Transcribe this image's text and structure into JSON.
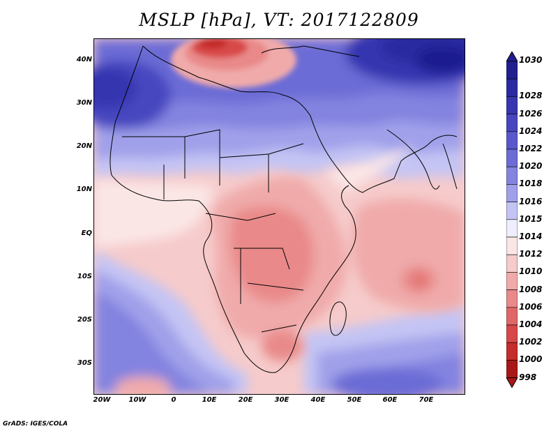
{
  "title": "MSLP [hPa], VT: 2017122809",
  "credit": "GrADS: IGES/COLA",
  "lat_labels": [
    "40N",
    "30N",
    "20N",
    "10N",
    "EQ",
    "10S",
    "20S",
    "30S"
  ],
  "lon_labels": [
    "20W",
    "10W",
    "0",
    "10E",
    "20E",
    "30E",
    "40E",
    "50E",
    "60E",
    "70E"
  ],
  "colorbar": {
    "levels": [
      "1030",
      "1028",
      "1026",
      "1024",
      "1022",
      "1020",
      "1018",
      "1016",
      "1015",
      "1014",
      "1012",
      "1010",
      "1008",
      "1006",
      "1004",
      "1002",
      "1000",
      "998"
    ],
    "colors": [
      "#1f1f90",
      "#2a2aa0",
      "#3636b0",
      "#4646c0",
      "#5858cc",
      "#6c6cd6",
      "#8383e0",
      "#a0a0ea",
      "#c4c4f4",
      "#eeeeff",
      "#fbe6e6",
      "#f6cbcb",
      "#f0aaaa",
      "#e98989",
      "#e06767",
      "#d84848",
      "#c52c2c",
      "#a81818"
    ]
  },
  "colors": {
    "high_dark": "#1f1f90",
    "high_mid": "#6c6cd6",
    "high_light": "#c4c4f4",
    "neutral": "#fbe6e6",
    "low_light": "#f6cbcb",
    "low_mid": "#e98989",
    "low_dark": "#c52c2c"
  }
}
